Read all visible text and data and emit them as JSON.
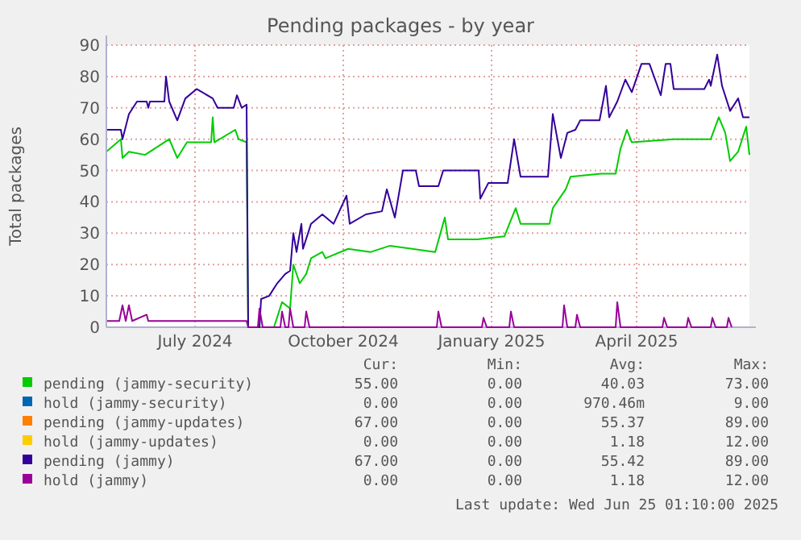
{
  "chart_data": {
    "type": "line",
    "title": "Pending packages - by year",
    "ylabel": "Total packages",
    "xlim": [
      "2024-05-22",
      "2025-06-25"
    ],
    "xticks": [
      {
        "value": "2024-07-16",
        "label": "July 2024"
      },
      {
        "value": "2024-10-16",
        "label": "October 2024"
      },
      {
        "value": "2025-01-16",
        "label": "January 2025"
      },
      {
        "value": "2025-04-16",
        "label": "April 2025"
      }
    ],
    "ylim": [
      0,
      90
    ],
    "yticks": [
      0,
      10,
      20,
      30,
      40,
      50,
      60,
      70,
      80,
      90
    ],
    "grid": true,
    "legend": "bottom",
    "series": [
      {
        "name": "pending (jammy-security)",
        "color": "#00cc00",
        "x": [
          "2024-05-22",
          "2024-05-31",
          "2024-06-01",
          "2024-06-05",
          "2024-06-15",
          "2024-06-30",
          "2024-07-05",
          "2024-07-11",
          "2024-07-26",
          "2024-07-27",
          "2024-07-28",
          "2024-08-10",
          "2024-08-12",
          "2024-08-17",
          "2024-08-18",
          "2024-09-03",
          "2024-09-08",
          "2024-09-13",
          "2024-09-15",
          "2024-09-19",
          "2024-09-23",
          "2024-09-26",
          "2024-10-03",
          "2024-10-05",
          "2024-10-19",
          "2024-11-02",
          "2024-11-14",
          "2024-12-12",
          "2024-12-18",
          "2024-12-20",
          "2025-01-07",
          "2025-01-24",
          "2025-01-31",
          "2025-02-03",
          "2025-02-21",
          "2025-02-23",
          "2025-03-03",
          "2025-03-06",
          "2025-03-25",
          "2025-04-03",
          "2025-04-06",
          "2025-04-10",
          "2025-04-13",
          "2025-05-09",
          "2025-06-01",
          "2025-06-06",
          "2025-06-10",
          "2025-06-13",
          "2025-06-18",
          "2025-06-23",
          "2025-06-25"
        ],
        "values": [
          56,
          60,
          54,
          56,
          55,
          60,
          54,
          59,
          59,
          67,
          59,
          63,
          60,
          59,
          0,
          0,
          8,
          6,
          20,
          14,
          17,
          22,
          24,
          22,
          25,
          24,
          26,
          24,
          35,
          28,
          28,
          29,
          38,
          33,
          33,
          38,
          44,
          48,
          49,
          49,
          57,
          63,
          59,
          60,
          60,
          67,
          62,
          53,
          56,
          64,
          55
        ]
      },
      {
        "name": "hold (jammy-security)",
        "color": "#0066b3"
      },
      {
        "name": "pending (jammy-updates)",
        "color": "#ff8000"
      },
      {
        "name": "hold (jammy-updates)",
        "color": "#ffcc00"
      },
      {
        "name": "pending (jammy)",
        "color": "#330099",
        "x": [
          "2024-05-22",
          "2024-05-31",
          "2024-06-01",
          "2024-06-05",
          "2024-06-10",
          "2024-06-16",
          "2024-06-17",
          "2024-06-18",
          "2024-06-27",
          "2024-06-28",
          "2024-06-30",
          "2024-07-05",
          "2024-07-10",
          "2024-07-17",
          "2024-07-27",
          "2024-07-30",
          "2024-08-09",
          "2024-08-11",
          "2024-08-14",
          "2024-08-17",
          "2024-08-18",
          "2024-08-25",
          "2024-08-26",
          "2024-08-31",
          "2024-09-05",
          "2024-09-10",
          "2024-09-13",
          "2024-09-15",
          "2024-09-17",
          "2024-09-20",
          "2024-09-21",
          "2024-09-26",
          "2024-10-03",
          "2024-10-10",
          "2024-10-18",
          "2024-10-20",
          "2024-10-30",
          "2024-11-09",
          "2024-11-12",
          "2024-11-17",
          "2024-11-22",
          "2024-11-30",
          "2024-12-02",
          "2024-12-14",
          "2024-12-17",
          "2025-01-08",
          "2025-01-09",
          "2025-01-14",
          "2025-01-26",
          "2025-01-30",
          "2025-02-03",
          "2025-02-20",
          "2025-02-23",
          "2025-02-28",
          "2025-03-04",
          "2025-03-09",
          "2025-03-12",
          "2025-03-24",
          "2025-03-28",
          "2025-03-30",
          "2025-04-04",
          "2025-04-09",
          "2025-04-13",
          "2025-04-19",
          "2025-04-24",
          "2025-05-01",
          "2025-05-04",
          "2025-05-07",
          "2025-05-09",
          "2025-05-28",
          "2025-05-31",
          "2025-06-01",
          "2025-06-05",
          "2025-06-08",
          "2025-06-13",
          "2025-06-18",
          "2025-06-21",
          "2025-06-25"
        ],
        "values": [
          63,
          63,
          60,
          68,
          72,
          72,
          70,
          72,
          72,
          80,
          72,
          66,
          73,
          76,
          73,
          70,
          70,
          74,
          70,
          71,
          0,
          0,
          9,
          10,
          14,
          17,
          18,
          30,
          24,
          33,
          25,
          33,
          36,
          33,
          42,
          33,
          36,
          37,
          44,
          35,
          50,
          50,
          45,
          45,
          50,
          50,
          41,
          46,
          46,
          60,
          48,
          48,
          68,
          54,
          62,
          63,
          66,
          66,
          77,
          67,
          72,
          79,
          75,
          84,
          84,
          74,
          84,
          84,
          76,
          76,
          79,
          77,
          87,
          77,
          69,
          73,
          67,
          67
        ]
      },
      {
        "name": "hold (jammy)",
        "color": "#990099",
        "x": [
          "2024-05-22",
          "2024-05-30",
          "2024-06-01",
          "2024-06-03",
          "2024-06-05",
          "2024-06-07",
          "2024-06-16",
          "2024-06-17",
          "2024-08-17",
          "2024-08-18",
          "2024-08-24",
          "2024-08-25",
          "2024-08-27",
          "2024-09-07",
          "2024-09-08",
          "2024-09-10",
          "2024-09-12",
          "2024-09-13",
          "2024-09-15",
          "2024-09-22",
          "2024-09-23",
          "2024-09-25",
          "2024-12-13",
          "2024-12-14",
          "2024-12-16",
          "2025-01-10",
          "2025-01-11",
          "2025-01-13",
          "2025-01-27",
          "2025-01-28",
          "2025-01-30",
          "2025-03-01",
          "2025-03-02",
          "2025-03-04",
          "2025-03-09",
          "2025-03-10",
          "2025-03-12",
          "2025-04-03",
          "2025-04-04",
          "2025-04-06",
          "2025-05-02",
          "2025-05-03",
          "2025-05-05",
          "2025-05-17",
          "2025-05-18",
          "2025-05-20",
          "2025-06-01",
          "2025-06-02",
          "2025-06-04",
          "2025-06-11",
          "2025-06-12",
          "2025-06-14"
        ],
        "values": [
          2,
          2,
          7,
          2,
          7,
          2,
          4,
          2,
          2,
          0,
          0,
          6,
          0,
          0,
          5,
          0,
          0,
          6,
          0,
          0,
          5,
          0,
          0,
          5,
          0,
          0,
          3,
          0,
          0,
          5,
          0,
          0,
          7,
          0,
          0,
          4,
          0,
          0,
          8,
          0,
          0,
          3,
          0,
          0,
          3,
          0,
          0,
          3,
          0,
          0,
          3,
          0
        ]
      }
    ],
    "annotations": [
      "Cur:",
      "Min:",
      "Avg:",
      "Max:",
      "55.00",
      "0.00",
      "40.03",
      "73.00",
      "0.00",
      "0.00",
      "970.46m",
      "9.00",
      "67.00",
      "0.00",
      "55.37",
      "89.00",
      "0.00",
      "0.00",
      "1.18",
      "12.00",
      "67.00",
      "0.00",
      "55.42",
      "89.00",
      "0.00",
      "0.00",
      "1.18",
      "12.00",
      "Last update: Wed Jun 25 01:10:00 2025"
    ]
  }
}
